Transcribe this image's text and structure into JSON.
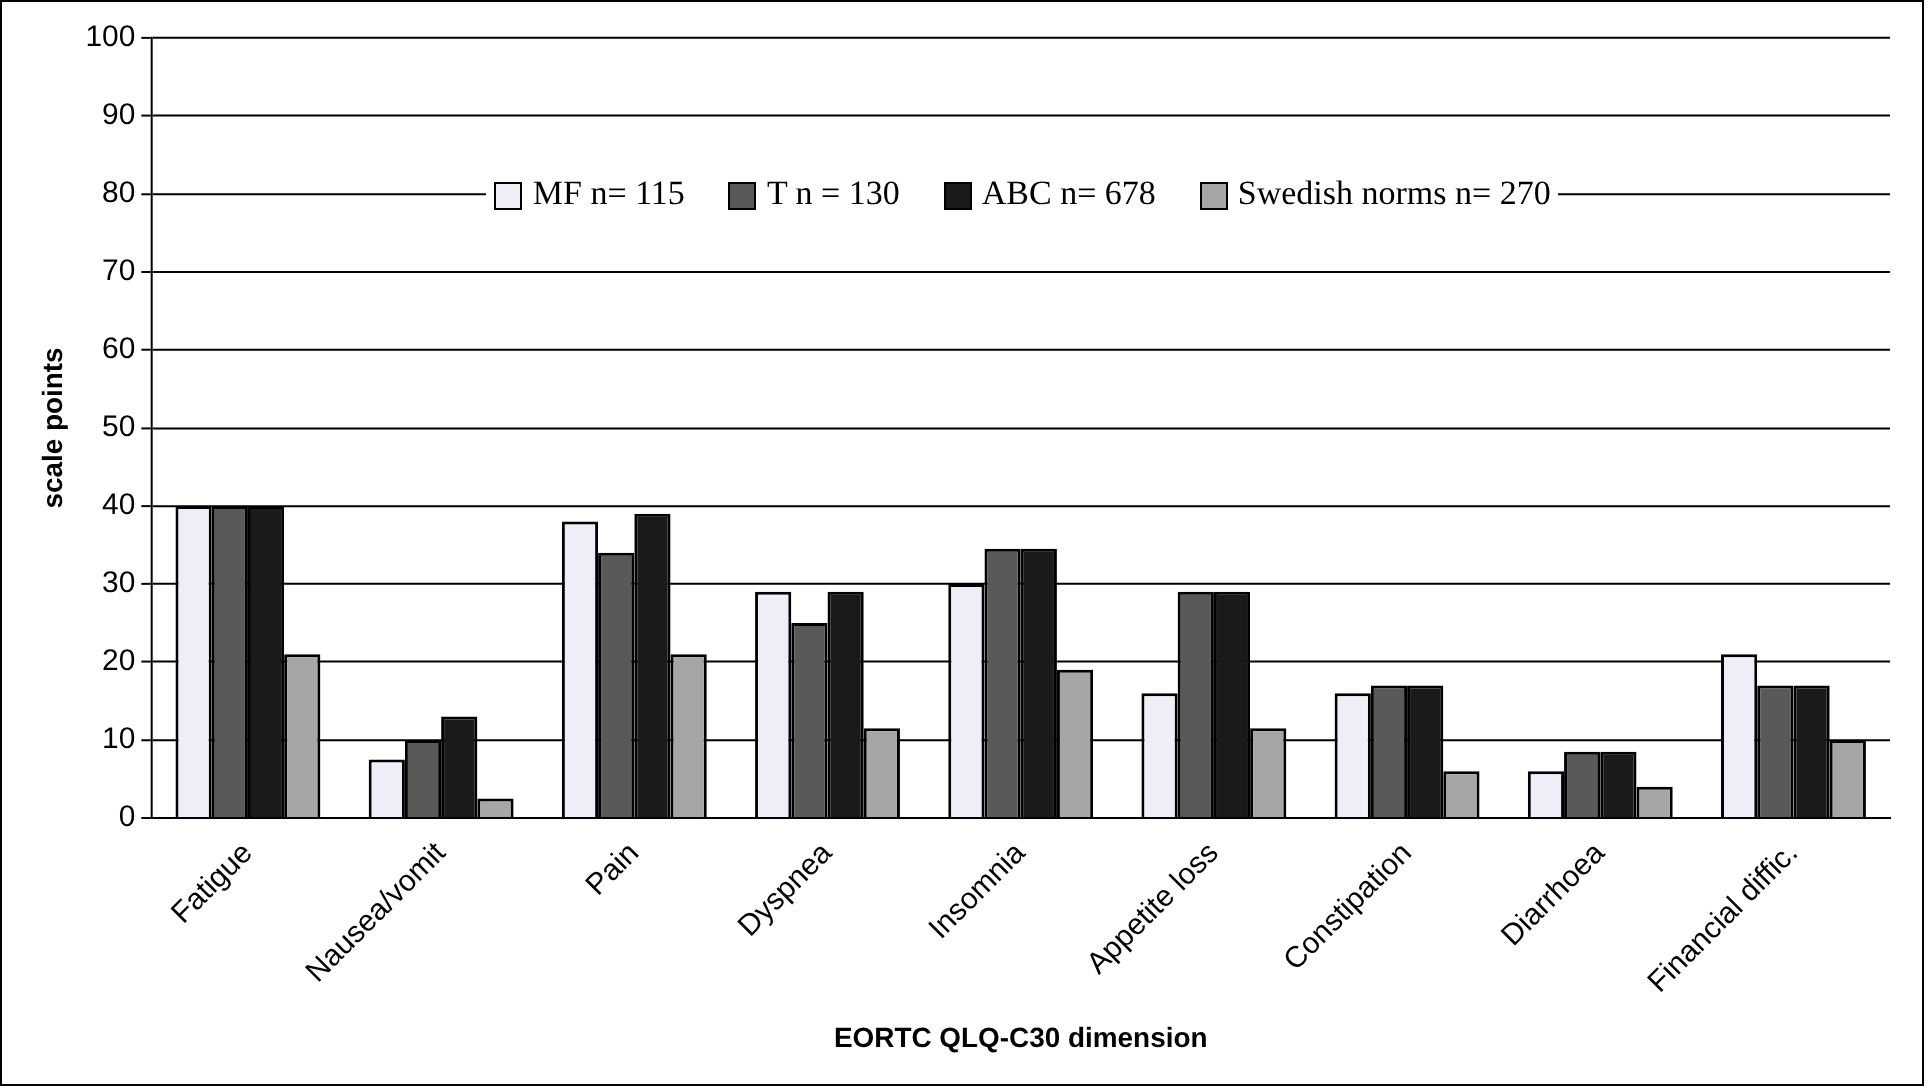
{
  "chart_data": {
    "type": "bar",
    "xlabel": "EORTC QLQ-C30 dimension",
    "ylabel": "scale points",
    "categories": [
      "Fatigue",
      "Nausea/vomit",
      "Pain",
      "Dyspnea",
      "Insomnia",
      "Appetite loss",
      "Constipation",
      "Diarrhoea",
      "Financial diffic."
    ],
    "series": [
      {
        "name": "MF n= 115",
        "color": "#eeeef8",
        "values": [
          40,
          7.5,
          38,
          29,
          30,
          16,
          16,
          6,
          21
        ]
      },
      {
        "name": "T n = 130",
        "color": "#595959",
        "values": [
          40,
          10,
          34,
          25,
          34.5,
          29,
          17,
          8.5,
          17
        ]
      },
      {
        "name": "ABC n= 678",
        "color": "#1a1a1a",
        "values": [
          40,
          13,
          39,
          29,
          34.5,
          29,
          17,
          8.5,
          17
        ]
      },
      {
        "name": "Swedish norms n= 270",
        "color": "#a6a6a6",
        "values": [
          21,
          2.5,
          21,
          11.5,
          19,
          11.5,
          6,
          4,
          10
        ]
      }
    ],
    "ylim": [
      0,
      100
    ],
    "yticks": [
      0,
      10,
      20,
      30,
      40,
      50,
      60,
      70,
      80,
      90,
      100
    ],
    "grid": "y",
    "legend": "top"
  }
}
